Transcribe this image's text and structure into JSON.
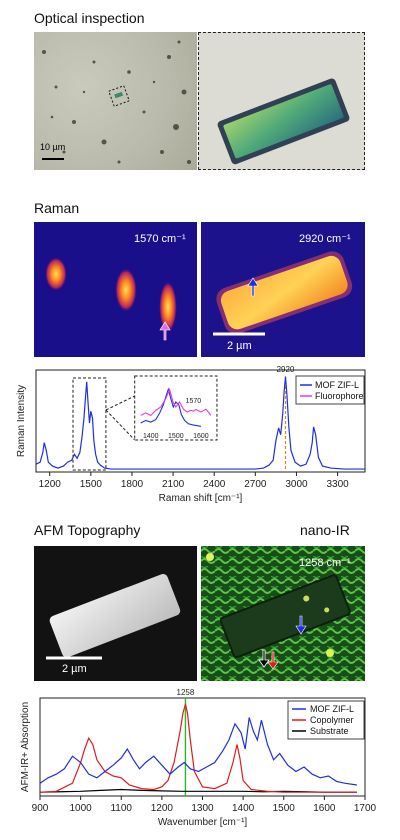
{
  "optical": {
    "title": "Optical inspection",
    "scalebar_label": "10 µm"
  },
  "raman": {
    "title": "Raman",
    "map1_label": "1570 cm⁻¹",
    "map2_label": "2920 cm⁻¹",
    "scalebar_label": "2 µm"
  },
  "afm": {
    "title": "AFM Topography",
    "nanoir_title": "nano-IR",
    "nanoir_label": "1258 cm⁻¹",
    "scalebar_label": "2 µm"
  },
  "colors": {
    "blue": "#1f2fe0",
    "magenta": "#e040e0",
    "red": "#e01b1b",
    "black": "#000000",
    "green_marker": "#22bb22",
    "orange_marker": "#d68a1c"
  },
  "chart_data": [
    {
      "type": "line",
      "xlabel": "Raman shift [cm⁻¹]",
      "ylabel": "Raman Intensity",
      "xlim": [
        1100,
        3500
      ],
      "xticks": [
        1200,
        1500,
        1800,
        2100,
        2400,
        2700,
        3000,
        3300
      ],
      "marker_label": "2920",
      "legend": [
        "MOF ZIF-L",
        "Fluorophore"
      ],
      "series": [
        {
          "name": "MOF ZIF-L",
          "x": [
            1100,
            1130,
            1150,
            1160,
            1175,
            1190,
            1220,
            1260,
            1300,
            1330,
            1360,
            1380,
            1400,
            1420,
            1435,
            1450,
            1462,
            1470,
            1480,
            1490,
            1500,
            1512,
            1522,
            1535,
            1550,
            1570,
            1600,
            1650,
            1700,
            1800,
            1900,
            2000,
            2100,
            2200,
            2300,
            2400,
            2500,
            2600,
            2700,
            2760,
            2800,
            2830,
            2850,
            2870,
            2885,
            2900,
            2910,
            2920,
            2930,
            2945,
            2960,
            2990,
            3030,
            3070,
            3100,
            3115,
            3125,
            3140,
            3160,
            3190,
            3250,
            3350,
            3450,
            3500
          ],
          "y": [
            0.08,
            0.1,
            0.2,
            0.3,
            0.22,
            0.1,
            0.06,
            0.04,
            0.06,
            0.1,
            0.12,
            0.18,
            0.14,
            0.2,
            0.35,
            0.55,
            0.78,
            0.92,
            0.7,
            0.5,
            0.62,
            0.55,
            0.32,
            0.18,
            0.1,
            0.07,
            0.04,
            0.03,
            0.03,
            0.03,
            0.03,
            0.03,
            0.03,
            0.03,
            0.03,
            0.03,
            0.03,
            0.03,
            0.03,
            0.04,
            0.07,
            0.12,
            0.32,
            0.45,
            0.38,
            0.6,
            0.82,
            0.97,
            0.8,
            0.45,
            0.22,
            0.1,
            0.06,
            0.08,
            0.18,
            0.3,
            0.46,
            0.38,
            0.15,
            0.06,
            0.04,
            0.03,
            0.03,
            0.03
          ]
        },
        {
          "name": "Fluorophore",
          "x": [
            1360,
            1380,
            1400,
            1420,
            1440,
            1460,
            1475,
            1490,
            1500,
            1515,
            1530,
            1545,
            1560,
            1570,
            1580,
            1600,
            1620,
            1640
          ],
          "y": [
            0.3,
            0.36,
            0.3,
            0.42,
            0.5,
            0.7,
            0.92,
            0.6,
            0.5,
            0.62,
            0.45,
            0.38,
            0.42,
            0.4,
            0.44,
            0.38,
            0.45,
            0.3
          ]
        }
      ],
      "inset": {
        "xticks": [
          1400,
          1500,
          1600
        ],
        "label": "1570"
      }
    },
    {
      "type": "line",
      "xlabel": "Wavenumber [cm⁻¹]",
      "ylabel": "AFM-IR+ Absorption",
      "xlim": [
        900,
        1700
      ],
      "xticks": [
        900,
        1000,
        1100,
        1200,
        1300,
        1400,
        1500,
        1600,
        1700
      ],
      "marker_label": "1258",
      "legend": [
        "MOF ZIF-L",
        "Copolymer",
        "Substrate"
      ],
      "series": [
        {
          "name": "MOF ZIF-L",
          "x": [
            900,
            920,
            940,
            960,
            980,
            1000,
            1020,
            1040,
            1060,
            1080,
            1100,
            1115,
            1130,
            1145,
            1160,
            1180,
            1200,
            1220,
            1240,
            1255,
            1270,
            1290,
            1310,
            1330,
            1350,
            1365,
            1380,
            1395,
            1405,
            1415,
            1425,
            1435,
            1445,
            1460,
            1475,
            1490,
            1510,
            1530,
            1550,
            1570,
            1590,
            1610,
            1630,
            1650,
            1680
          ],
          "y": [
            0.12,
            0.18,
            0.22,
            0.28,
            0.42,
            0.35,
            0.22,
            0.18,
            0.25,
            0.32,
            0.4,
            0.5,
            0.38,
            0.28,
            0.35,
            0.42,
            0.32,
            0.22,
            0.3,
            0.35,
            0.28,
            0.25,
            0.3,
            0.35,
            0.48,
            0.6,
            0.78,
            0.68,
            0.5,
            0.85,
            0.7,
            0.6,
            0.82,
            0.55,
            0.38,
            0.45,
            0.32,
            0.25,
            0.3,
            0.22,
            0.18,
            0.2,
            0.14,
            0.12,
            0.1
          ]
        },
        {
          "name": "Copolymer",
          "x": [
            900,
            940,
            980,
            1000,
            1010,
            1020,
            1030,
            1040,
            1060,
            1080,
            1100,
            1120,
            1150,
            1180,
            1200,
            1215,
            1230,
            1245,
            1252,
            1258,
            1263,
            1270,
            1280,
            1300,
            1330,
            1360,
            1375,
            1385,
            1392,
            1400,
            1420,
            1460,
            1500,
            1560,
            1620,
            1680
          ],
          "y": [
            0.02,
            0.03,
            0.12,
            0.35,
            0.5,
            0.62,
            0.55,
            0.38,
            0.25,
            0.2,
            0.18,
            0.1,
            0.06,
            0.05,
            0.08,
            0.15,
            0.35,
            0.7,
            0.9,
            1.0,
            0.9,
            0.6,
            0.25,
            0.08,
            0.06,
            0.12,
            0.35,
            0.55,
            0.4,
            0.15,
            0.05,
            0.03,
            0.02,
            0.02,
            0.02,
            0.02
          ]
        },
        {
          "name": "Substrate",
          "x": [
            900,
            950,
            1000,
            1050,
            1100,
            1150,
            1200,
            1250,
            1300,
            1350,
            1400,
            1450,
            1500,
            1550,
            1600,
            1650,
            1680
          ],
          "y": [
            0.02,
            0.025,
            0.03,
            0.04,
            0.05,
            0.04,
            0.035,
            0.03,
            0.03,
            0.03,
            0.03,
            0.025,
            0.03,
            0.025,
            0.02,
            0.02,
            0.02
          ]
        }
      ]
    }
  ]
}
